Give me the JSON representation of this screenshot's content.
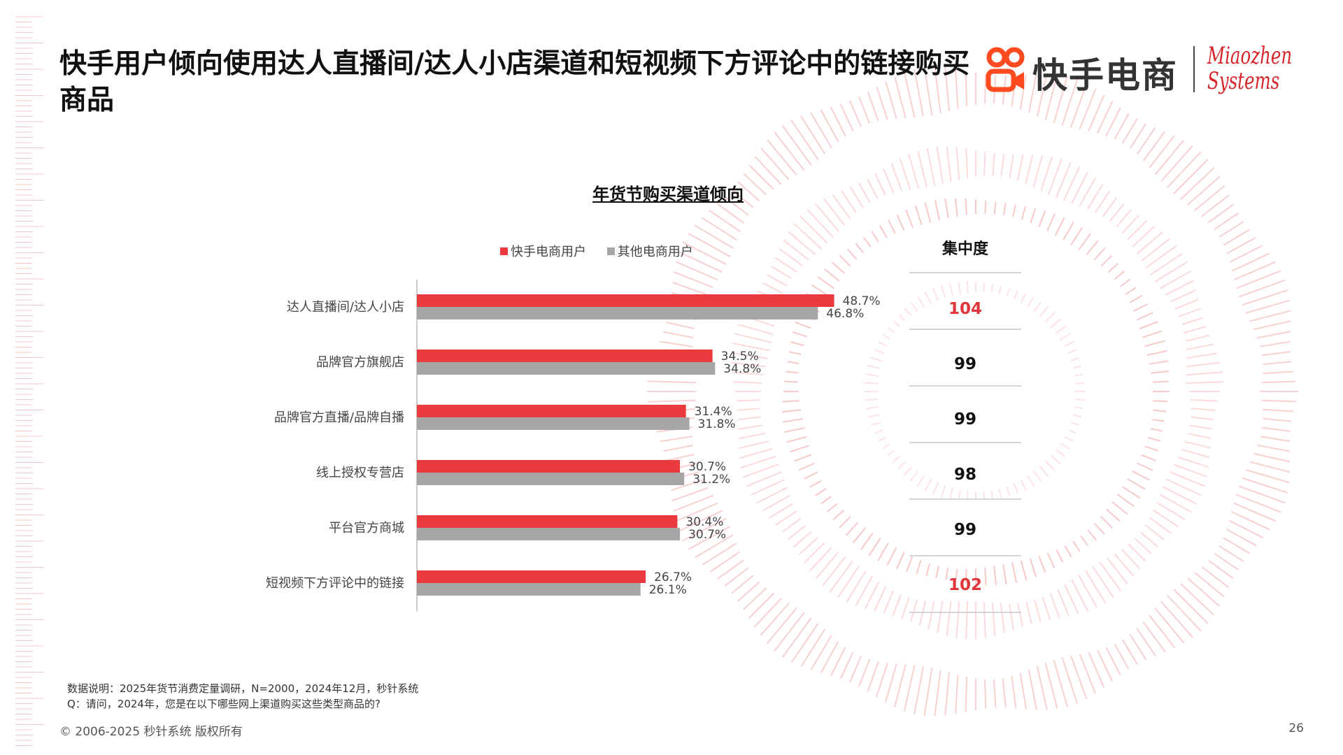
{
  "page": {
    "title": "快手用户倾向使用达人直播间/达人小店渠道和短视频下方评论中的链接购买商品",
    "logo_text": "快手电商",
    "brand_line1": "Miaozhen",
    "brand_line2": "Systems",
    "footer_line1": "数据说明：2025年货节消费定量调研，N=2000，2024年12月，秒针系统",
    "footer_line2": "Q：请问，2024年，您是在以下哪些网上渠道购买这些类型商品的?",
    "copyright": "© 2006-2025 秒针系统 版权所有",
    "page_number": "26",
    "colors": {
      "accent": "#ea3a3e",
      "gray": "#a6a6a6"
    }
  },
  "chart_data": {
    "type": "bar",
    "orientation": "horizontal",
    "title": "年货节购买渠道倾向",
    "categories": [
      "达人直播间/达人小店",
      "品牌官方旗舰店",
      "品牌官方直播/品牌自播",
      "线上授权专营店",
      "平台官方商城",
      "短视频下方评论中的链接"
    ],
    "series": [
      {
        "name": "快手电商用户",
        "values": [
          48.7,
          34.5,
          31.4,
          30.7,
          30.4,
          26.7
        ],
        "labels": [
          "48.7%",
          "34.5%",
          "31.4%",
          "30.7%",
          "30.4%",
          "26.7%"
        ],
        "color": "#ea3a3e"
      },
      {
        "name": "其他电商用户",
        "values": [
          46.8,
          34.8,
          31.8,
          31.2,
          30.7,
          26.1
        ],
        "labels": [
          "46.8%",
          "34.8%",
          "31.8%",
          "31.2%",
          "30.7%",
          "26.1%"
        ],
        "color": "#a6a6a6"
      }
    ],
    "xlim": [
      0,
      60
    ],
    "legend": "top",
    "grid": false,
    "concentration": {
      "header": "集中度",
      "values": [
        "104",
        "99",
        "99",
        "98",
        "99",
        "102"
      ],
      "highlight": [
        true,
        false,
        false,
        false,
        false,
        true
      ]
    }
  }
}
